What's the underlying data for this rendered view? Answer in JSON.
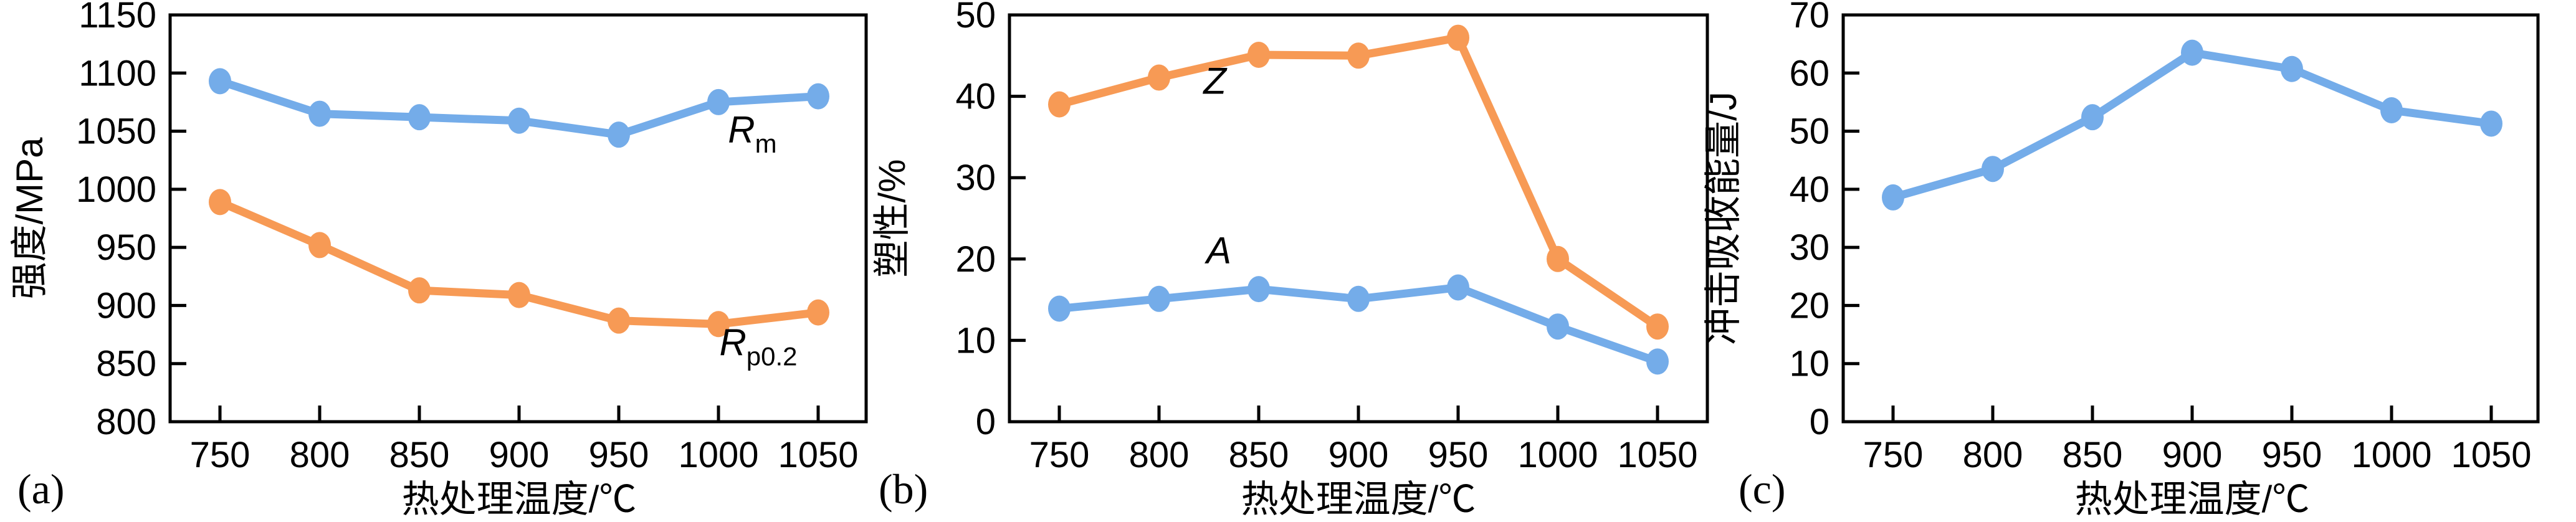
{
  "figure": {
    "description": "Three-panel line chart figure: mechanical properties vs heat treatment temperature",
    "background_color": "#ffffff",
    "axis_color": "#000000",
    "series_colors": {
      "blue": "#74ACE9",
      "orange": "#F79A55"
    }
  },
  "chart_data": [
    {
      "type": "line",
      "panel_label": "(a)",
      "xlabel": "热处理温度/℃",
      "ylabel": "强度/MPa",
      "x": [
        750,
        800,
        850,
        900,
        950,
        1000,
        1050
      ],
      "xtick_labels": [
        "750",
        "800",
        "850",
        "900",
        "950",
        "1000",
        "1050"
      ],
      "ylim": [
        800,
        1150
      ],
      "yticks": [
        800,
        850,
        900,
        950,
        1000,
        1050,
        1100,
        1150
      ],
      "ytick_labels": [
        "800",
        "850",
        "900",
        "950",
        "1000",
        "1050",
        "1100",
        "1150"
      ],
      "grid": false,
      "legend_position": "inline-annotation",
      "series": [
        {
          "name": "Rm",
          "color": "#74ACE9",
          "values": [
            1093,
            1065,
            1062,
            1059,
            1047,
            1075,
            1080
          ],
          "annotation": {
            "main": "R",
            "sub": "m",
            "at_x": 1017,
            "at_y": 1040
          }
        },
        {
          "name": "Rp0.2",
          "color": "#F79A55",
          "values": [
            989,
            952,
            913,
            909,
            887,
            884,
            894
          ],
          "annotation": {
            "main": "R",
            "sub": "p0.2",
            "at_x": 1020,
            "at_y": 857
          }
        }
      ]
    },
    {
      "type": "line",
      "panel_label": "(b)",
      "xlabel": "热处理温度/℃",
      "ylabel": "塑性/%",
      "x": [
        750,
        800,
        850,
        900,
        950,
        1000,
        1050
      ],
      "xtick_labels": [
        "750",
        "800",
        "850",
        "900",
        "950",
        "1000",
        "1050"
      ],
      "ylim": [
        0,
        50
      ],
      "yticks": [
        0,
        10,
        20,
        30,
        40,
        50
      ],
      "ytick_labels": [
        "0",
        "10",
        "20",
        "30",
        "40",
        "50"
      ],
      "grid": false,
      "legend_position": "inline-annotation",
      "series": [
        {
          "name": "Z",
          "color": "#F79A55",
          "values": [
            39,
            42.3,
            45.1,
            45,
            47.2,
            20,
            11.7
          ],
          "annotation": {
            "main": "Z",
            "sub": "",
            "at_x": 828,
            "at_y": 40.3
          }
        },
        {
          "name": "A",
          "color": "#74ACE9",
          "values": [
            13.9,
            15.1,
            16.3,
            15.1,
            16.5,
            11.7,
            7.4
          ],
          "annotation": {
            "main": "A",
            "sub": "",
            "at_x": 830,
            "at_y": 19.5
          }
        }
      ]
    },
    {
      "type": "line",
      "panel_label": "(c)",
      "xlabel": "热处理温度/℃",
      "ylabel": "冲击吸收能量/J",
      "x": [
        750,
        800,
        850,
        900,
        950,
        1000,
        1050
      ],
      "xtick_labels": [
        "750",
        "800",
        "850",
        "900",
        "950",
        "1000",
        "1050"
      ],
      "ylim": [
        0,
        70
      ],
      "yticks": [
        0,
        10,
        20,
        30,
        40,
        50,
        60,
        70
      ],
      "ytick_labels": [
        "0",
        "10",
        "20",
        "30",
        "40",
        "50",
        "60",
        "70"
      ],
      "grid": false,
      "legend_position": "none",
      "series": [
        {
          "name": "impact-energy",
          "color": "#74ACE9",
          "values": [
            38.6,
            43.5,
            52.4,
            63.5,
            60.7,
            53.6,
            51.3
          ],
          "annotation": null
        }
      ]
    }
  ]
}
